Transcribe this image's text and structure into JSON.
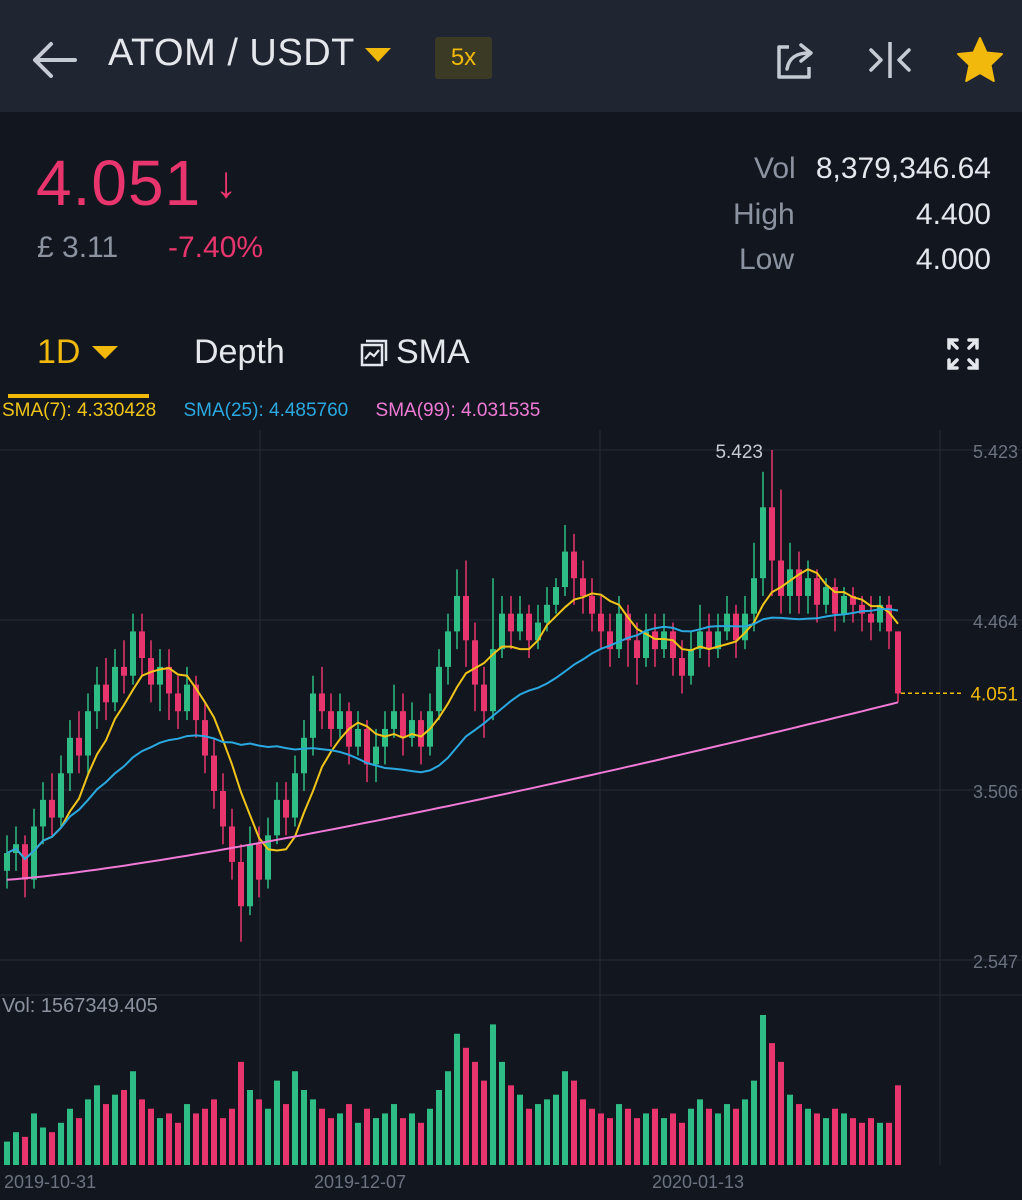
{
  "header": {
    "pair": "ATOM / USDT",
    "leverage": "5x",
    "icons": {
      "back": "back-arrow-icon",
      "share": "share-icon",
      "compare": "compare-icon",
      "favorite": "star-icon"
    },
    "colors": {
      "background": "#1f2531",
      "accent": "#f0b90b"
    }
  },
  "ticker": {
    "last_price": "4.051",
    "arrow": "↓",
    "fiat_price": "£ 3.11",
    "change_pct": "-7.40%",
    "vol_label": "Vol",
    "vol_value": "8,379,346.64",
    "high_label": "High",
    "high_value": "4.400",
    "low_label": "Low",
    "low_value": "4.000",
    "colors": {
      "down": "#e8356d",
      "up": "#2ebd85"
    }
  },
  "tabs": {
    "interval": "1D",
    "depth": "Depth",
    "indicator": "SMA"
  },
  "chart_data": {
    "type": "candlestick",
    "sma_legend": [
      {
        "label": "SMA(7): 4.330428",
        "color": "#f0c419"
      },
      {
        "label": "SMA(25): 4.485760",
        "color": "#2aa8e0"
      },
      {
        "label": "SMA(99): 4.031535",
        "color": "#f07ad6"
      }
    ],
    "price_axis_ticks": [
      "5.423",
      "4.464",
      "3.506",
      "2.547"
    ],
    "ylim": [
      2.547,
      5.423
    ],
    "current_price_label": "4.051",
    "current_price": 4.051,
    "max_marker": "5.423",
    "max_price": 5.423,
    "date_ticks": [
      "2019-10-31",
      "2019-12-07",
      "2020-01-13"
    ],
    "volume_label": "Vol: 1567349.405",
    "candles": [
      [
        3.05,
        3.15,
        2.95,
        3.25
      ],
      [
        3.15,
        3.2,
        3.05,
        3.3
      ],
      [
        3.2,
        3.0,
        2.9,
        3.25
      ],
      [
        3.0,
        3.3,
        2.95,
        3.4
      ],
      [
        3.3,
        3.45,
        3.2,
        3.55
      ],
      [
        3.45,
        3.35,
        3.25,
        3.6
      ],
      [
        3.35,
        3.6,
        3.3,
        3.7
      ],
      [
        3.6,
        3.8,
        3.5,
        3.9
      ],
      [
        3.8,
        3.7,
        3.6,
        3.95
      ],
      [
        3.7,
        3.95,
        3.6,
        4.05
      ],
      [
        3.95,
        4.1,
        3.85,
        4.2
      ],
      [
        4.1,
        4.0,
        3.9,
        4.25
      ],
      [
        4.0,
        4.2,
        3.95,
        4.3
      ],
      [
        4.2,
        4.15,
        4.05,
        4.35
      ],
      [
        4.15,
        4.4,
        4.1,
        4.5
      ],
      [
        4.4,
        4.25,
        4.15,
        4.5
      ],
      [
        4.25,
        4.1,
        4.0,
        4.35
      ],
      [
        4.1,
        4.2,
        3.95,
        4.3
      ],
      [
        4.2,
        4.05,
        3.9,
        4.3
      ],
      [
        4.05,
        3.95,
        3.85,
        4.15
      ],
      [
        3.95,
        4.1,
        3.9,
        4.2
      ],
      [
        4.1,
        3.9,
        3.8,
        4.15
      ],
      [
        3.9,
        3.7,
        3.6,
        4.0
      ],
      [
        3.7,
        3.5,
        3.4,
        3.8
      ],
      [
        3.5,
        3.3,
        3.2,
        3.6
      ],
      [
        3.3,
        3.1,
        3.0,
        3.4
      ],
      [
        3.1,
        2.85,
        2.65,
        3.2
      ],
      [
        2.85,
        3.2,
        2.8,
        3.3
      ],
      [
        3.2,
        3.0,
        2.9,
        3.3
      ],
      [
        3.0,
        3.25,
        2.95,
        3.35
      ],
      [
        3.25,
        3.45,
        3.2,
        3.55
      ],
      [
        3.45,
        3.35,
        3.25,
        3.55
      ],
      [
        3.35,
        3.6,
        3.3,
        3.7
      ],
      [
        3.6,
        3.8,
        3.5,
        3.9
      ],
      [
        3.8,
        4.05,
        3.7,
        4.15
      ],
      [
        4.05,
        3.95,
        3.85,
        4.2
      ],
      [
        3.95,
        3.85,
        3.75,
        4.05
      ],
      [
        3.85,
        3.95,
        3.8,
        4.05
      ],
      [
        3.95,
        3.75,
        3.65,
        4.0
      ],
      [
        3.75,
        3.85,
        3.7,
        3.95
      ],
      [
        3.85,
        3.65,
        3.55,
        3.9
      ],
      [
        3.65,
        3.75,
        3.55,
        3.85
      ],
      [
        3.75,
        3.85,
        3.65,
        3.95
      ],
      [
        3.85,
        3.95,
        3.8,
        4.1
      ],
      [
        3.95,
        3.8,
        3.7,
        4.05
      ],
      [
        3.8,
        3.9,
        3.75,
        4.0
      ],
      [
        3.9,
        3.75,
        3.65,
        3.95
      ],
      [
        3.75,
        3.95,
        3.7,
        4.05
      ],
      [
        3.95,
        4.2,
        3.9,
        4.3
      ],
      [
        4.2,
        4.4,
        4.1,
        4.5
      ],
      [
        4.4,
        4.6,
        4.3,
        4.75
      ],
      [
        4.6,
        4.35,
        4.2,
        4.8
      ],
      [
        4.35,
        4.1,
        3.95,
        4.45
      ],
      [
        4.1,
        3.95,
        3.8,
        4.2
      ],
      [
        3.95,
        4.3,
        3.9,
        4.7
      ],
      [
        4.3,
        4.5,
        4.25,
        4.6
      ],
      [
        4.5,
        4.4,
        4.3,
        4.6
      ],
      [
        4.4,
        4.5,
        4.35,
        4.6
      ],
      [
        4.5,
        4.35,
        4.25,
        4.55
      ],
      [
        4.35,
        4.45,
        4.3,
        4.55
      ],
      [
        4.45,
        4.55,
        4.4,
        4.65
      ],
      [
        4.55,
        4.65,
        4.5,
        4.7
      ],
      [
        4.65,
        4.85,
        4.6,
        5.0
      ],
      [
        4.85,
        4.7,
        4.55,
        4.95
      ],
      [
        4.7,
        4.6,
        4.5,
        4.8
      ],
      [
        4.6,
        4.5,
        4.4,
        4.7
      ],
      [
        4.5,
        4.4,
        4.3,
        4.6
      ],
      [
        4.4,
        4.3,
        4.2,
        4.5
      ],
      [
        4.3,
        4.5,
        4.25,
        4.6
      ],
      [
        4.5,
        4.35,
        4.2,
        4.55
      ],
      [
        4.35,
        4.25,
        4.1,
        4.45
      ],
      [
        4.25,
        4.4,
        4.2,
        4.5
      ],
      [
        4.4,
        4.3,
        4.2,
        4.5
      ],
      [
        4.3,
        4.4,
        4.25,
        4.5
      ],
      [
        4.4,
        4.25,
        4.15,
        4.45
      ],
      [
        4.25,
        4.15,
        4.05,
        4.35
      ],
      [
        4.15,
        4.3,
        4.1,
        4.4
      ],
      [
        4.3,
        4.4,
        4.25,
        4.55
      ],
      [
        4.4,
        4.3,
        4.2,
        4.5
      ],
      [
        4.3,
        4.4,
        4.25,
        4.5
      ],
      [
        4.4,
        4.5,
        4.35,
        4.6
      ],
      [
        4.5,
        4.35,
        4.25,
        4.55
      ],
      [
        4.35,
        4.5,
        4.3,
        4.6
      ],
      [
        4.5,
        4.7,
        4.4,
        4.9
      ],
      [
        4.7,
        5.1,
        4.6,
        5.3
      ],
      [
        5.1,
        4.8,
        4.6,
        5.423
      ],
      [
        4.8,
        4.6,
        4.5,
        5.2
      ],
      [
        4.6,
        4.75,
        4.5,
        4.9
      ],
      [
        4.75,
        4.6,
        4.5,
        4.85
      ],
      [
        4.6,
        4.7,
        4.5,
        4.8
      ],
      [
        4.7,
        4.55,
        4.45,
        4.75
      ],
      [
        4.55,
        4.65,
        4.5,
        4.7
      ],
      [
        4.65,
        4.5,
        4.4,
        4.7
      ],
      [
        4.5,
        4.6,
        4.45,
        4.65
      ],
      [
        4.6,
        4.55,
        4.45,
        4.65
      ],
      [
        4.55,
        4.5,
        4.4,
        4.6
      ],
      [
        4.5,
        4.45,
        4.35,
        4.6
      ],
      [
        4.45,
        4.55,
        4.4,
        4.6
      ],
      [
        4.55,
        4.4,
        4.3,
        4.6
      ],
      [
        4.4,
        4.05,
        4.0,
        4.4
      ]
    ],
    "volumes": [
      0.05,
      0.07,
      0.06,
      0.11,
      0.08,
      0.07,
      0.09,
      0.12,
      0.1,
      0.14,
      0.17,
      0.13,
      0.15,
      0.16,
      0.2,
      0.14,
      0.12,
      0.1,
      0.11,
      0.09,
      0.13,
      0.11,
      0.12,
      0.14,
      0.1,
      0.12,
      0.22,
      0.16,
      0.14,
      0.12,
      0.18,
      0.13,
      0.2,
      0.16,
      0.14,
      0.12,
      0.1,
      0.11,
      0.13,
      0.09,
      0.12,
      0.1,
      0.11,
      0.13,
      0.1,
      0.11,
      0.09,
      0.12,
      0.16,
      0.2,
      0.28,
      0.25,
      0.22,
      0.18,
      0.3,
      0.22,
      0.17,
      0.15,
      0.12,
      0.13,
      0.14,
      0.15,
      0.2,
      0.18,
      0.14,
      0.12,
      0.11,
      0.1,
      0.13,
      0.12,
      0.1,
      0.11,
      0.12,
      0.1,
      0.11,
      0.09,
      0.12,
      0.14,
      0.12,
      0.11,
      0.13,
      0.12,
      0.14,
      0.18,
      0.32,
      0.26,
      0.22,
      0.15,
      0.13,
      0.12,
      0.11,
      0.1,
      0.12,
      0.11,
      0.1,
      0.09,
      0.1,
      0.09,
      0.09,
      0.17
    ]
  }
}
